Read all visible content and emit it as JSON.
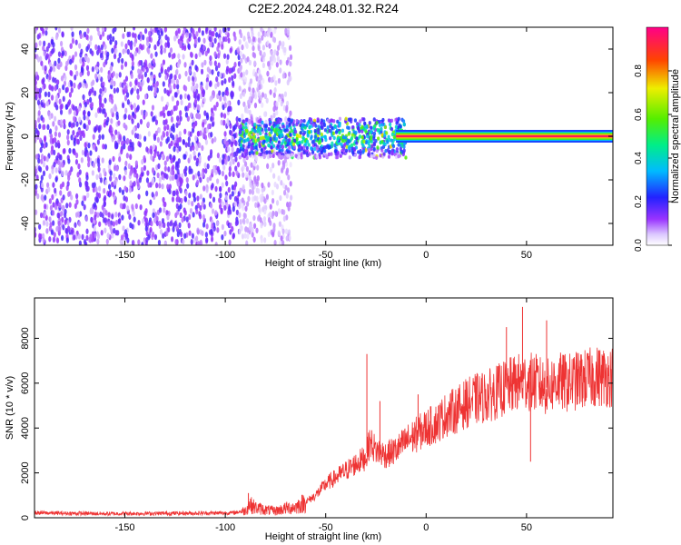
{
  "page_title": "C2E2.2024.248.01.32.R24",
  "colors": {
    "snr_line": "#ee3333",
    "axis": "#000000",
    "background": "#ffffff"
  },
  "chart_data": [
    {
      "type": "heatmap",
      "xlabel": "Height of straight line (km)",
      "ylabel": "Frequency (Hz)",
      "xlim": [
        -195,
        93
      ],
      "ylim": [
        -50,
        50
      ],
      "x_ticks": [
        -150,
        -100,
        -50,
        0,
        50
      ],
      "y_ticks": [
        -40,
        -20,
        0,
        20,
        40
      ],
      "grid": false,
      "colorbar": {
        "label": "Normalized spectral amplitude",
        "range": [
          0.0,
          1.0
        ],
        "ticks": [
          0.0,
          0.2,
          0.4,
          0.6,
          0.8
        ],
        "colormap": "white-purple-blue-cyan-green-yellow-red-magenta"
      },
      "regions": [
        {
          "x_range": [
            -195,
            -93
          ],
          "freq_range": [
            -50,
            50
          ],
          "amplitude": 0.12,
          "description": "broadband noise"
        },
        {
          "x_range": [
            -93,
            -67
          ],
          "freq_range": [
            -50,
            50
          ],
          "amplitude": 0.06,
          "description": "sparse noise bands"
        },
        {
          "x_range": [
            -93,
            -10
          ],
          "freq_range": [
            -10,
            8
          ],
          "amplitude": 0.35,
          "description": "echo band"
        },
        {
          "x_range": [
            -15,
            93
          ],
          "freq_range": [
            -2,
            2
          ],
          "amplitude": 0.95,
          "description": "narrow peak near 0 Hz"
        }
      ]
    },
    {
      "type": "line",
      "xlabel": "Height of straight line (km)",
      "ylabel": "SNR (10 * v/v)",
      "xlim": [
        -195,
        93
      ],
      "ylim": [
        0,
        9800
      ],
      "x_ticks": [
        -150,
        -100,
        -50,
        0,
        50
      ],
      "y_ticks": [
        0,
        2000,
        4000,
        6000,
        8000
      ],
      "grid": false,
      "series": [
        {
          "color": "#ee3333",
          "x": [
            -195,
            -180,
            -160,
            -140,
            -120,
            -100,
            -95,
            -90,
            -88,
            -85,
            -80,
            -75,
            -70,
            -65,
            -60,
            -55,
            -50,
            -45,
            -40,
            -35,
            -30,
            -28,
            -25,
            -20,
            -15,
            -10,
            -5,
            0,
            5,
            10,
            15,
            20,
            25,
            30,
            35,
            40,
            45,
            50,
            55,
            60,
            65,
            70,
            75,
            80,
            85,
            90,
            93
          ],
          "values": [
            220,
            200,
            180,
            190,
            200,
            210,
            230,
            320,
            600,
            450,
            350,
            300,
            420,
            480,
            700,
            1000,
            1500,
            1800,
            2100,
            2400,
            2700,
            3400,
            3000,
            2800,
            3000,
            3400,
            3700,
            4000,
            4200,
            4600,
            4800,
            5100,
            5300,
            5400,
            5600,
            5800,
            6000,
            6100,
            6000,
            5800,
            6100,
            6000,
            6100,
            6200,
            6300,
            6300,
            6300
          ],
          "peaks": [
            {
              "x": -88.5,
              "y": 1100
            },
            {
              "x": -29.5,
              "y": 7300
            },
            {
              "x": -23.0,
              "y": 5200
            },
            {
              "x": -4.0,
              "y": 5500
            },
            {
              "x": 40.0,
              "y": 8500
            },
            {
              "x": 48.0,
              "y": 9400
            },
            {
              "x": 52.0,
              "y": 2500
            },
            {
              "x": 60.0,
              "y": 8800
            }
          ]
        }
      ]
    }
  ]
}
